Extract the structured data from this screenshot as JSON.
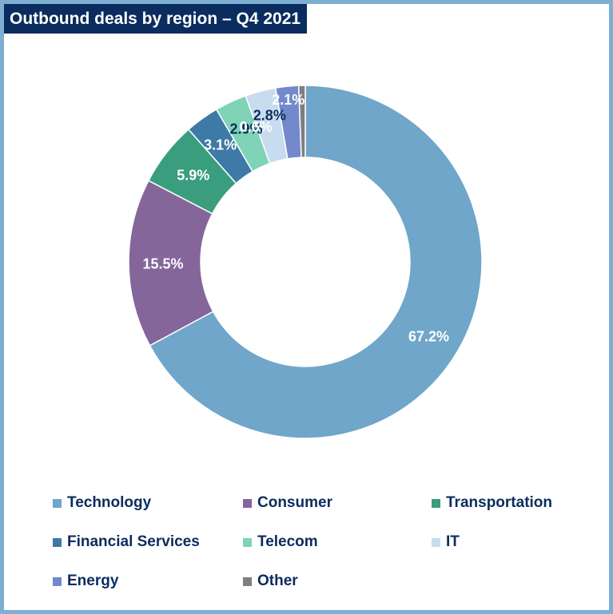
{
  "title": "Outbound deals by region – Q4 2021",
  "chart_data": {
    "type": "pie",
    "variant": "donut",
    "title": "Outbound deals by region – Q4 2021",
    "legend_position": "bottom",
    "series": [
      {
        "name": "Technology",
        "value": 67.2,
        "label": "67.2%",
        "color": "#6fa6c9",
        "label_color": "#ffffff"
      },
      {
        "name": "Consumer",
        "value": 15.5,
        "label": "15.5%",
        "color": "#84669a",
        "label_color": "#ffffff"
      },
      {
        "name": "Transportation",
        "value": 5.9,
        "label": "5.9%",
        "color": "#3a9e7e",
        "label_color": "#ffffff"
      },
      {
        "name": "Financial Services",
        "value": 3.1,
        "label": "3.1%",
        "color": "#3d7aa6",
        "label_color": "#ffffff"
      },
      {
        "name": "Telecom",
        "value": 2.9,
        "label": "2.9%",
        "color": "#7fd3b7",
        "label_color": "#0b2c5e"
      },
      {
        "name": "IT",
        "value": 2.8,
        "label": "2.8%",
        "color": "#c7dcef",
        "label_color": "#0b2c5e"
      },
      {
        "name": "Energy",
        "value": 2.1,
        "label": "2.1%",
        "color": "#7289cc",
        "label_color": "#ffffff"
      },
      {
        "name": "Other",
        "value": 0.6,
        "label": "0.6%",
        "color": "#7f7f7f",
        "label_color": "#ffffff"
      }
    ]
  }
}
